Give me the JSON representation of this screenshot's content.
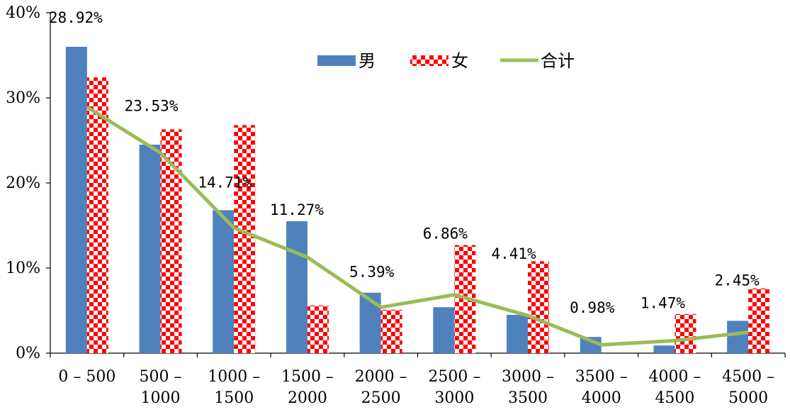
{
  "chart_data": {
    "type": "bar",
    "title": "",
    "xlabel": "",
    "ylabel": "",
    "ylim": [
      0,
      40
    ],
    "yticks": [
      "0%",
      "10%",
      "20%",
      "30%",
      "40%"
    ],
    "categories": [
      [
        "0 – 500"
      ],
      [
        "500 –",
        "1000"
      ],
      [
        "1000 –",
        "1500"
      ],
      [
        "1500 –",
        "2000"
      ],
      [
        "2000 –",
        "2500"
      ],
      [
        "2500 –",
        "3000"
      ],
      [
        "3000 –",
        "3500"
      ],
      [
        "3500 –",
        "4000"
      ],
      [
        "4000 –",
        "4500"
      ],
      [
        "4500 –",
        "5000"
      ]
    ],
    "series": [
      {
        "name": "男",
        "type": "bar",
        "color": "#4f81bd",
        "values": [
          36.0,
          24.5,
          16.8,
          15.5,
          7.1,
          5.4,
          4.5,
          1.9,
          0.9,
          3.8
        ]
      },
      {
        "name": "女",
        "type": "bar",
        "pattern": "red-white-checker",
        "color": "#ff0000",
        "values": [
          32.4,
          26.3,
          26.8,
          5.6,
          5.1,
          12.7,
          10.8,
          0.0,
          4.6,
          7.6
        ]
      },
      {
        "name": "合计",
        "type": "line",
        "color": "#9bbb59",
        "values": [
          28.92,
          23.53,
          14.71,
          11.27,
          5.39,
          6.86,
          4.41,
          0.98,
          1.47,
          2.45
        ]
      }
    ],
    "data_labels": [
      "28.92%",
      "23.53%",
      "14.71%",
      "11.27%",
      "5.39%",
      "6.86%",
      "4.41%",
      "0.98%",
      "1.47%",
      "2.45%"
    ],
    "legend_position": "top-center",
    "grid": false
  }
}
